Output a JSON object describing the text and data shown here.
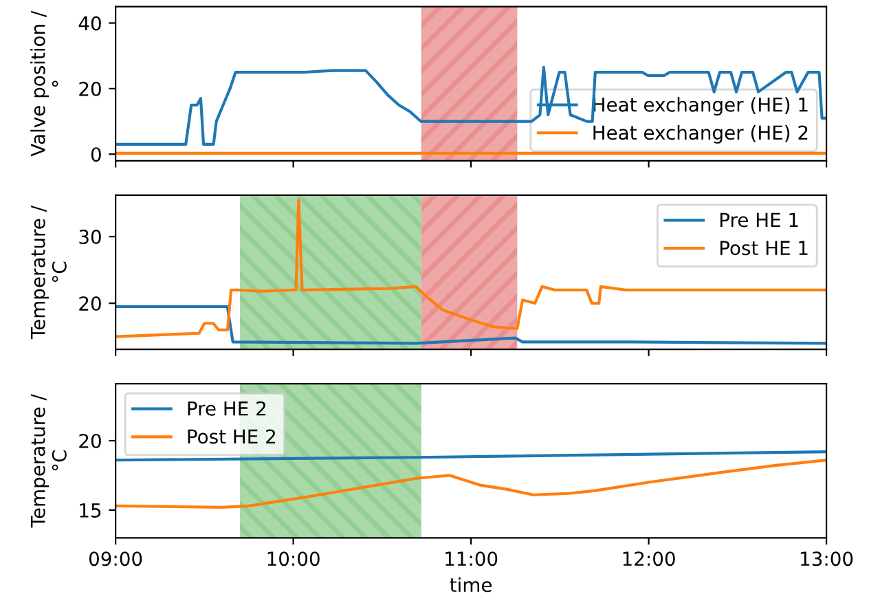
{
  "chart_data": [
    {
      "type": "line",
      "ylabel": "Valve position /\n°",
      "xlim": [
        9,
        13
      ],
      "xticks": [
        {
          "value": 9,
          "label": null
        },
        {
          "value": 10,
          "label": null
        },
        {
          "value": 11,
          "label": null
        },
        {
          "value": 12,
          "label": null
        },
        {
          "value": 13,
          "label": null
        }
      ],
      "ylim": [
        -2,
        45
      ],
      "yticks": [
        0,
        20,
        40
      ],
      "tick_labels": "y",
      "legend": "bottom right",
      "grid": false,
      "bands": [
        {
          "axis": "x",
          "from": 10.72,
          "to": 11.26,
          "color": "#e99090"
        }
      ],
      "series": [
        {
          "name": "Heat exchanger (HE) 1",
          "color": "#1f77b4",
          "x": [
            9,
            9.395,
            9.426,
            9.458,
            9.479,
            9.495,
            9.551,
            9.567,
            9.613,
            9.644,
            9.675,
            10.065,
            10.22,
            10.407,
            10.469,
            10.532,
            10.594,
            10.656,
            10.718,
            11.263,
            11.341,
            11.388,
            11.409,
            11.434,
            11.497,
            11.528,
            11.559,
            11.652,
            11.683,
            11.699,
            11.963,
            11.995,
            12.088,
            12.119,
            12.337,
            12.368,
            12.4,
            12.462,
            12.493,
            12.524,
            12.586,
            12.617,
            12.773,
            12.804,
            12.835,
            12.897,
            12.928,
            12.959,
            12.975,
            13
          ],
          "values": [
            3,
            3,
            15,
            15,
            17,
            3,
            3,
            10,
            16,
            20,
            25,
            25,
            25.5,
            25.5,
            22,
            18,
            15,
            13,
            10,
            10,
            10,
            12,
            26.5,
            12,
            25,
            25,
            12,
            10,
            10,
            25,
            25,
            24,
            24,
            25,
            25,
            19,
            25,
            25,
            19,
            25,
            25,
            19,
            25,
            25,
            19,
            25,
            25,
            25,
            11,
            11
          ]
        },
        {
          "name": "Heat exchanger (HE) 2",
          "color": "#ff7f0e",
          "x": [
            9,
            11,
            13
          ],
          "values": [
            0.3,
            0.3,
            0.3
          ]
        }
      ]
    },
    {
      "type": "line",
      "ylabel": "Temperature /\n°C",
      "xlim": [
        9,
        13
      ],
      "xticks": [
        {
          "value": 9,
          "label": null
        },
        {
          "value": 10,
          "label": null
        },
        {
          "value": 11,
          "label": null
        },
        {
          "value": 12,
          "label": null
        },
        {
          "value": 13,
          "label": null
        }
      ],
      "ylim": [
        13.1,
        36.2
      ],
      "yticks": [
        20,
        30
      ],
      "tick_labels": "y",
      "legend": "top right",
      "grid": false,
      "bands": [
        {
          "axis": "x",
          "from": 9.7,
          "to": 10.72,
          "color": "#93cf93"
        },
        {
          "axis": "x",
          "from": 10.72,
          "to": 11.26,
          "color": "#e99090"
        }
      ],
      "series": [
        {
          "name": "Pre HE 1",
          "color": "#1f77b4",
          "x": [
            9,
            9.629,
            9.66,
            10.69,
            11.25,
            11.29,
            11.9,
            13
          ],
          "values": [
            19.5,
            19.5,
            14.2,
            14.0,
            14.8,
            14.2,
            14.2,
            14.0
          ]
        },
        {
          "name": "Post HE 1",
          "color": "#ff7f0e",
          "x": [
            9,
            9.47,
            9.5,
            9.55,
            9.58,
            9.63,
            9.65,
            9.69,
            9.82,
            10.0,
            10.015,
            10.03,
            10.05,
            10.53,
            10.69,
            10.75,
            10.84,
            11.0,
            11.12,
            11.26,
            11.29,
            11.36,
            11.4,
            11.47,
            11.65,
            11.68,
            11.72,
            11.73,
            11.87,
            13
          ],
          "values": [
            15,
            15.5,
            17,
            17,
            16,
            16,
            22,
            22,
            21.8,
            22,
            22,
            35.5,
            22,
            22.2,
            22.5,
            21,
            19,
            17.5,
            16.5,
            16.2,
            20.5,
            20,
            22.5,
            22,
            22,
            20,
            20,
            22.5,
            22,
            22
          ]
        }
      ]
    },
    {
      "type": "line",
      "ylabel": "Temperature /\n°C",
      "xlabel": "time",
      "xlim": [
        9,
        13
      ],
      "xticks": [
        {
          "value": 9,
          "label": "09:00"
        },
        {
          "value": 10,
          "label": "10:00"
        },
        {
          "value": 11,
          "label": "11:00"
        },
        {
          "value": 12,
          "label": "12:00"
        },
        {
          "value": 13,
          "label": "13:00"
        }
      ],
      "ylim": [
        13,
        24.1
      ],
      "yticks": [
        15,
        20
      ],
      "legend": "top left",
      "grid": false,
      "bands": [
        {
          "axis": "x",
          "from": 9.7,
          "to": 10.72,
          "color": "#93cf93"
        }
      ],
      "series": [
        {
          "name": "Pre HE 2",
          "color": "#1f77b4",
          "x": [
            9,
            10.7,
            13
          ],
          "values": [
            18.6,
            18.8,
            19.2
          ]
        },
        {
          "name": "Post HE 2",
          "color": "#ff7f0e",
          "x": [
            9,
            9.6,
            9.75,
            10.1,
            10.7,
            10.88,
            11.05,
            11.2,
            11.35,
            11.55,
            11.7,
            12.0,
            12.4,
            12.7,
            13
          ],
          "values": [
            15.3,
            15.2,
            15.3,
            16,
            17.3,
            17.5,
            16.8,
            16.5,
            16.1,
            16.2,
            16.4,
            17.0,
            17.7,
            18.2,
            18.6
          ]
        }
      ]
    }
  ]
}
